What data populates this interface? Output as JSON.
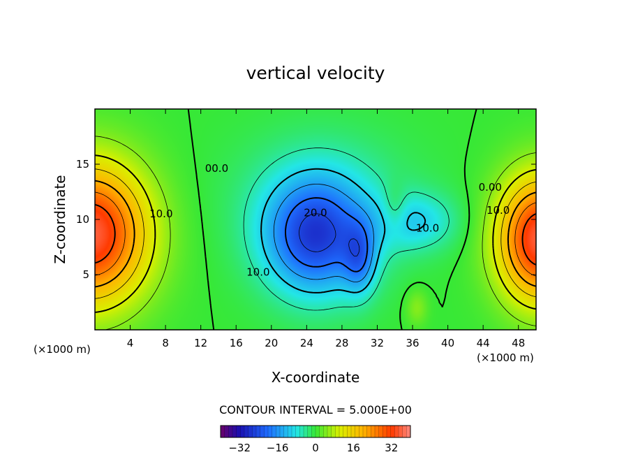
{
  "chart_data": {
    "type": "heatmap",
    "title": "vertical velocity",
    "xlabel": "X-coordinate",
    "ylabel": "Z-coordinate",
    "x_unit": "(×1000 m)",
    "y_unit": "(×1000 m)",
    "xlim": [
      0,
      50
    ],
    "ylim": [
      0,
      20
    ],
    "x_ticks": [
      4,
      8,
      12,
      16,
      20,
      24,
      28,
      32,
      36,
      40,
      44,
      48
    ],
    "y_ticks": [
      5,
      10,
      15
    ],
    "contour_interval_label": "CONTOUR INTERVAL = 5.000E+00",
    "contour_labels": [
      {
        "text": "10.0",
        "x": 7.5,
        "z": 10.2
      },
      {
        "text": "00.0",
        "x": 13.8,
        "z": 14.3
      },
      {
        "text": "20.0",
        "x": 25.0,
        "z": 10.3
      },
      {
        "text": "10.0",
        "x": 18.5,
        "z": 4.9
      },
      {
        "text": "10.0",
        "x": 37.7,
        "z": 8.9
      },
      {
        "text": "0.00",
        "x": 44.8,
        "z": 12.6
      },
      {
        "text": "10.0",
        "x": 45.7,
        "z": 10.5
      }
    ],
    "field_features": [
      {
        "kind": "updraft",
        "center_x": 0.5,
        "center_z": 8.5,
        "peak": 32
      },
      {
        "kind": "downdraft",
        "center_x": 26.0,
        "center_z": 8.0,
        "peak": -28
      },
      {
        "kind": "updraft",
        "center_x": 49.5,
        "center_z": 8.0,
        "peak": 32
      }
    ],
    "colorbar": {
      "min": -40,
      "max": 40,
      "ticks": [
        "-32",
        "-16",
        "0",
        "16",
        "32"
      ]
    }
  }
}
